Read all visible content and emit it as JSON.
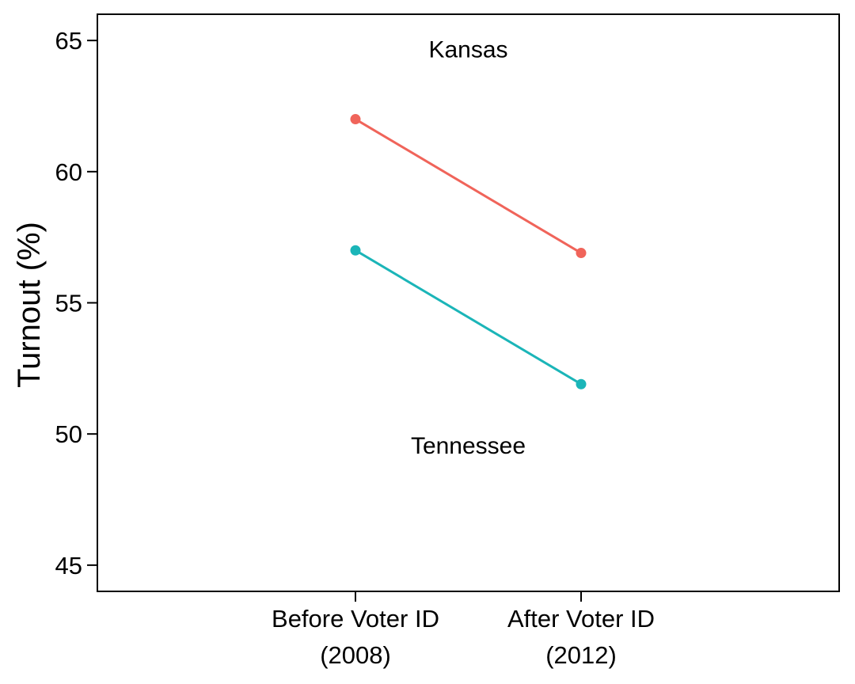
{
  "chart_data": {
    "type": "line",
    "categories": [
      "Before Voter ID\n(2008)",
      "After Voter ID\n(2012)"
    ],
    "series": [
      {
        "name": "Kansas",
        "values": [
          62.0,
          56.9
        ],
        "color": "#F0645A"
      },
      {
        "name": "Tennessee",
        "values": [
          57.0,
          51.9
        ],
        "color": "#1BB5B8"
      }
    ],
    "ylabel": "Turnout (%)",
    "xlabel": "",
    "title": "",
    "ylim": [
      44,
      66
    ],
    "yticks": [
      45,
      50,
      55,
      60,
      65
    ],
    "grid": false,
    "legend": "none"
  }
}
